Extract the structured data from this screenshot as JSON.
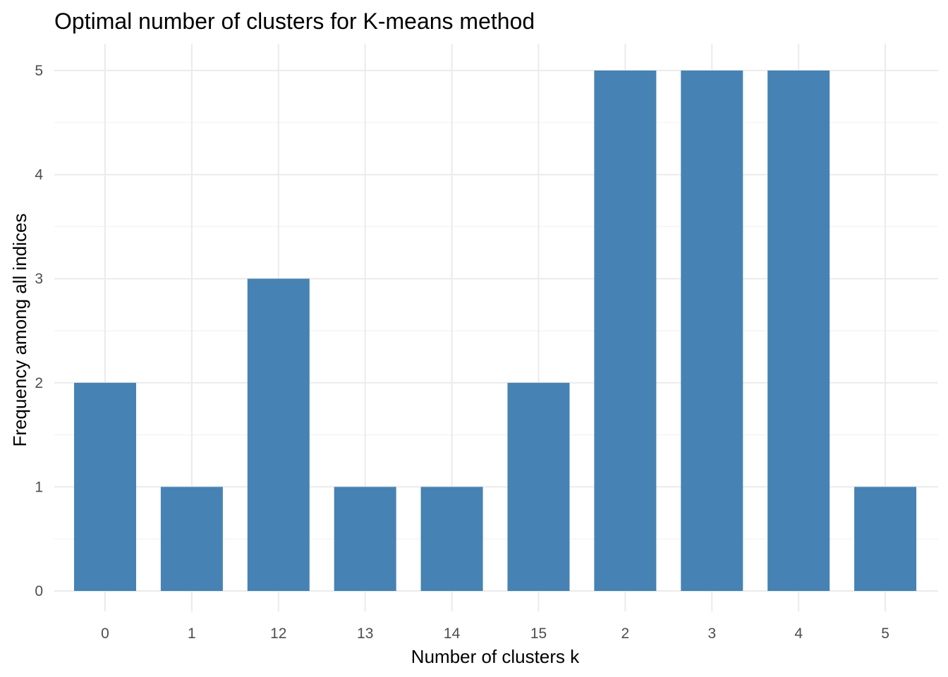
{
  "chart_data": {
    "type": "bar",
    "title": "Optimal number of clusters for K-means method",
    "xlabel": "Number of clusters k",
    "ylabel": "Frequency among all indices",
    "categories": [
      "0",
      "1",
      "12",
      "13",
      "14",
      "15",
      "2",
      "3",
      "4",
      "5"
    ],
    "values": [
      2,
      1,
      3,
      1,
      1,
      2,
      5,
      5,
      5,
      1
    ],
    "ylim": [
      0,
      5
    ],
    "yticks": [
      0,
      1,
      2,
      3,
      4,
      5
    ],
    "grid": true,
    "legend": "none",
    "bar_color": "#4682b4"
  }
}
